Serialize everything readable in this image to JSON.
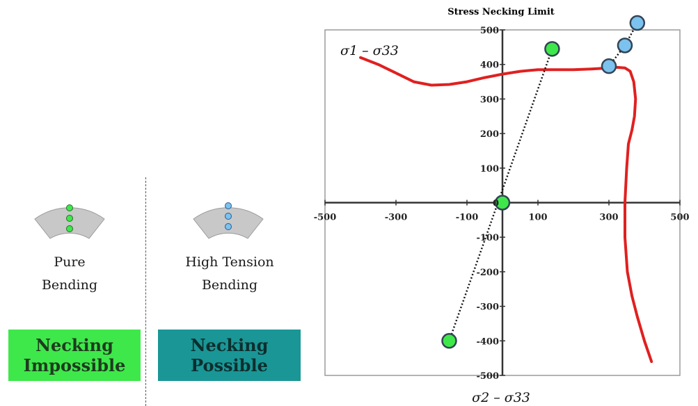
{
  "left_panel": {
    "pure": {
      "line1": "Pure",
      "line2": "Bending"
    },
    "tension": {
      "line1": "High Tension",
      "line2": "Bending"
    },
    "box_impossible": {
      "line1": "Necking",
      "line2": "Impossible",
      "color": "#3ee84a"
    },
    "box_possible": {
      "line1": "Necking",
      "line2": "Possible",
      "color": "#1a9696"
    }
  },
  "chart_data": {
    "type": "scatter",
    "title": "Stress Necking Limit",
    "ylabel": "σ1 – σ33",
    "xlabel": "σ2 – σ33",
    "xlim": [
      -500,
      500
    ],
    "ylim": [
      -500,
      500
    ],
    "x_ticks": [
      -500,
      -300,
      -100,
      100,
      300,
      500
    ],
    "y_ticks": [
      500,
      400,
      300,
      200,
      100,
      0,
      -100,
      -200,
      -300,
      -400,
      -500
    ],
    "series": [
      {
        "kind": "curve",
        "color": "#e02020",
        "x": [
          -400,
          -350,
          -300,
          -250,
          -200,
          -150,
          -100,
          -50,
          0,
          50,
          100,
          150,
          200,
          250,
          300,
          320,
          345,
          360,
          370,
          375,
          372,
          365,
          355,
          350,
          345,
          345,
          352,
          365,
          380,
          400,
          420
        ],
        "y": [
          420,
          400,
          375,
          350,
          340,
          342,
          350,
          362,
          372,
          380,
          385,
          385,
          385,
          387,
          390,
          392,
          390,
          380,
          350,
          300,
          250,
          210,
          170,
          100,
          0,
          -100,
          -200,
          -270,
          -330,
          -400,
          -460
        ]
      },
      {
        "kind": "line",
        "color": "#111111",
        "style": "dotted",
        "x": [
          -150,
          140
        ],
        "y": [
          -400,
          445
        ]
      },
      {
        "kind": "line",
        "color": "#111111",
        "style": "dotted",
        "x": [
          300,
          345,
          380
        ],
        "y": [
          395,
          455,
          520
        ]
      }
    ],
    "points": [
      {
        "x": 140,
        "y": 445,
        "color": "#3ee84a"
      },
      {
        "x": 0,
        "y": 0,
        "color": "#3ee84a"
      },
      {
        "x": -150,
        "y": -400,
        "color": "#3ee84a"
      },
      {
        "x": 300,
        "y": 395,
        "color": "#7cc2ee"
      },
      {
        "x": 345,
        "y": 455,
        "color": "#7cc2ee"
      },
      {
        "x": 380,
        "y": 520,
        "color": "#7cc2ee"
      }
    ]
  }
}
